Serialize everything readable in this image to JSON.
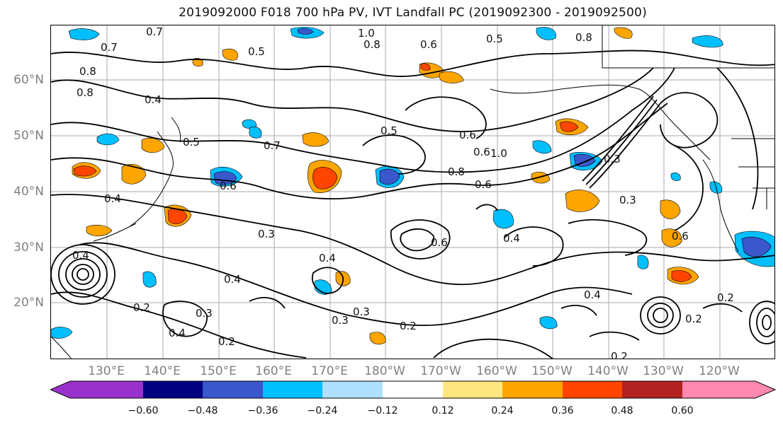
{
  "title": "2019092000 F018 700 hPa PV, IVT Landfall PC (2019092300 - 2019092500)",
  "latitude_labels": [
    "60°N",
    "50°N",
    "40°N",
    "30°N",
    "20°N"
  ],
  "longitude_labels": [
    "130°E",
    "140°E",
    "150°E",
    "160°E",
    "170°E",
    "180°W",
    "170°W",
    "160°W",
    "150°W",
    "140°W",
    "130°W",
    "120°W"
  ],
  "contour_labels": [
    "0.7",
    "0.5",
    "1.0",
    "0.8",
    "0.6",
    "0.5",
    "0.8",
    "0.7",
    "0.8",
    "0.8",
    "0.4",
    "0.5",
    "0.7",
    "0.6",
    "0.5",
    "0.6",
    "0.4",
    "0.6",
    "1.0",
    "0.8",
    "0.6",
    "0.3",
    "0.3",
    "0.6",
    "0.6",
    "0.4",
    "0.4",
    "0.3",
    "0.4",
    "0.4",
    "0.2",
    "0.3",
    "0.3",
    "0.2",
    "0.4",
    "0.3",
    "0.2",
    "0.2",
    "0.2",
    "0.4",
    "0.2"
  ],
  "colorbar": {
    "ticks": [
      "−0.60",
      "−0.48",
      "−0.36",
      "−0.24",
      "−0.12",
      "0.12",
      "0.24",
      "0.36",
      "0.48",
      "0.60"
    ],
    "colors": [
      "#9932cc",
      "#000080",
      "#3a57cc",
      "#00bfff",
      "#b0e0ff",
      "#ffffff",
      "#ffe680",
      "#ffa500",
      "#ff4500",
      "#b22222",
      "#ff88b0"
    ]
  },
  "palette": {
    "contour": "#000000",
    "grid": "#999999",
    "coast": "#000000"
  }
}
